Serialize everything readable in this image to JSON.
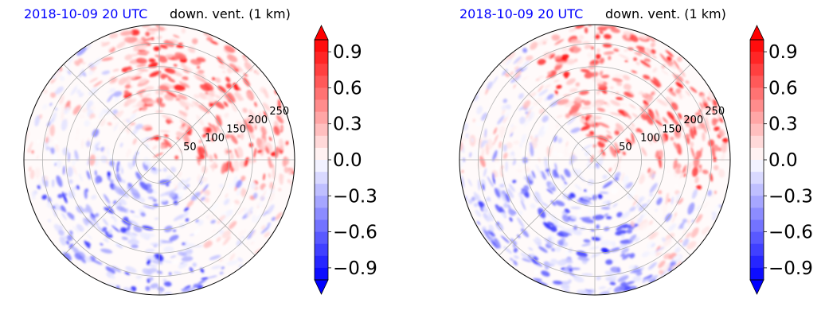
{
  "colors": {
    "title_time": "#0000ff",
    "positive": "#ff0000",
    "negative": "#0000ff",
    "neutral": "#ffffff",
    "grid": "#b0b0b0"
  },
  "chart_data": [
    {
      "type": "heatmap",
      "projection": "polar",
      "title_left": "2018-10-09 20 UTC",
      "title_right": "down. vent. (1 km)",
      "radial_ticks": [
        50,
        100,
        150,
        200,
        250
      ],
      "rlim": [
        0,
        290
      ],
      "grid": true,
      "colorbar": {
        "ticks": [
          "0.9",
          "0.6",
          "0.3",
          "0.0",
          "−0.3",
          "−0.6",
          "−0.9"
        ],
        "vmin": -1.0,
        "vmax": 1.0,
        "extend": "both"
      }
    },
    {
      "type": "heatmap",
      "projection": "polar",
      "title_left": "2018-10-09 20 UTC",
      "title_right": "down. vent. (1 km)",
      "radial_ticks": [
        50,
        100,
        150,
        200,
        250
      ],
      "rlim": [
        0,
        290
      ],
      "grid": true,
      "colorbar": {
        "ticks": [
          "0.9",
          "0.6",
          "0.3",
          "0.0",
          "−0.3",
          "−0.6",
          "−0.9"
        ],
        "vmin": -1.0,
        "vmax": 1.0,
        "extend": "both"
      }
    }
  ]
}
